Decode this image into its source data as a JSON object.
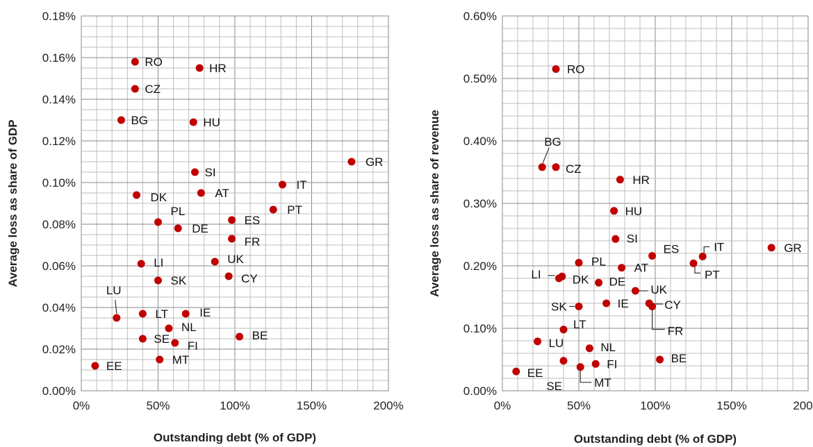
{
  "chart_data": [
    {
      "type": "scatter",
      "xlabel": "Outstanding debt (% of GDP)",
      "ylabel": "Average loss as share of GDP",
      "xlim": [
        0,
        200
      ],
      "ylim": [
        0,
        0.18
      ],
      "x_ticks": [
        "0%",
        "50%",
        "100%",
        "150%",
        "200%"
      ],
      "y_ticks": [
        "0.00%",
        "0.02%",
        "0.04%",
        "0.06%",
        "0.08%",
        "0.10%",
        "0.12%",
        "0.14%",
        "0.16%",
        "0.18%"
      ],
      "grid": true,
      "point_color": "#c00000",
      "points": [
        {
          "label": "RO",
          "x": 35,
          "y": 0.158
        },
        {
          "label": "HR",
          "x": 77,
          "y": 0.155
        },
        {
          "label": "CZ",
          "x": 35,
          "y": 0.145
        },
        {
          "label": "BG",
          "x": 26,
          "y": 0.13
        },
        {
          "label": "HU",
          "x": 73,
          "y": 0.129
        },
        {
          "label": "GR",
          "x": 176,
          "y": 0.11
        },
        {
          "label": "SI",
          "x": 74,
          "y": 0.105
        },
        {
          "label": "IT",
          "x": 131,
          "y": 0.099
        },
        {
          "label": "AT",
          "x": 78,
          "y": 0.095
        },
        {
          "label": "DK",
          "x": 36,
          "y": 0.094
        },
        {
          "label": "PT",
          "x": 125,
          "y": 0.087
        },
        {
          "label": "PL",
          "x": 50,
          "y": 0.081
        },
        {
          "label": "ES",
          "x": 98,
          "y": 0.082
        },
        {
          "label": "DE",
          "x": 63,
          "y": 0.078
        },
        {
          "label": "FR",
          "x": 98,
          "y": 0.073
        },
        {
          "label": "UK",
          "x": 87,
          "y": 0.062
        },
        {
          "label": "LI",
          "x": 39,
          "y": 0.061
        },
        {
          "label": "CY",
          "x": 96,
          "y": 0.055
        },
        {
          "label": "SK",
          "x": 50,
          "y": 0.053
        },
        {
          "label": "LU",
          "x": 23,
          "y": 0.035
        },
        {
          "label": "LT",
          "x": 40,
          "y": 0.037
        },
        {
          "label": "IE",
          "x": 68,
          "y": 0.037
        },
        {
          "label": "NL",
          "x": 57,
          "y": 0.03
        },
        {
          "label": "BE",
          "x": 103,
          "y": 0.026
        },
        {
          "label": "SE",
          "x": 40,
          "y": 0.025
        },
        {
          "label": "FI",
          "x": 61,
          "y": 0.023
        },
        {
          "label": "MT",
          "x": 51,
          "y": 0.015
        },
        {
          "label": "EE",
          "x": 9,
          "y": 0.012
        }
      ]
    },
    {
      "type": "scatter",
      "xlabel": "Outstanding debt (% of GDP)",
      "ylabel": "Average loss as share of revenue",
      "xlim": [
        0,
        200
      ],
      "ylim": [
        0,
        0.6
      ],
      "x_ticks": [
        "0%",
        "50%",
        "100%",
        "150%",
        "200%"
      ],
      "y_ticks": [
        "0.00%",
        "0.10%",
        "0.20%",
        "0.30%",
        "0.40%",
        "0.50%",
        "0.60%"
      ],
      "grid": true,
      "point_color": "#c00000",
      "points": [
        {
          "label": "RO",
          "x": 35,
          "y": 0.515
        },
        {
          "label": "BG",
          "x": 26,
          "y": 0.358
        },
        {
          "label": "CZ",
          "x": 35,
          "y": 0.358
        },
        {
          "label": "HR",
          "x": 77,
          "y": 0.338
        },
        {
          "label": "HU",
          "x": 73,
          "y": 0.288
        },
        {
          "label": "SI",
          "x": 74,
          "y": 0.243
        },
        {
          "label": "GR",
          "x": 176,
          "y": 0.229
        },
        {
          "label": "ES",
          "x": 98,
          "y": 0.216
        },
        {
          "label": "IT",
          "x": 131,
          "y": 0.215
        },
        {
          "label": "PT",
          "x": 125,
          "y": 0.204
        },
        {
          "label": "PL",
          "x": 50,
          "y": 0.205
        },
        {
          "label": "AT",
          "x": 78,
          "y": 0.197
        },
        {
          "label": "LI",
          "x": 37,
          "y": 0.18
        },
        {
          "label": "DK",
          "x": 39,
          "y": 0.183
        },
        {
          "label": "DE",
          "x": 63,
          "y": 0.173
        },
        {
          "label": "UK",
          "x": 87,
          "y": 0.16
        },
        {
          "label": "CY",
          "x": 96,
          "y": 0.14
        },
        {
          "label": "IE",
          "x": 68,
          "y": 0.14
        },
        {
          "label": "SK",
          "x": 50,
          "y": 0.135
        },
        {
          "label": "FR",
          "x": 98,
          "y": 0.135
        },
        {
          "label": "LT",
          "x": 40,
          "y": 0.098
        },
        {
          "label": "LU",
          "x": 23,
          "y": 0.079
        },
        {
          "label": "NL",
          "x": 57,
          "y": 0.068
        },
        {
          "label": "BE",
          "x": 103,
          "y": 0.05
        },
        {
          "label": "SE",
          "x": 40,
          "y": 0.048
        },
        {
          "label": "FI",
          "x": 61,
          "y": 0.043
        },
        {
          "label": "MT",
          "x": 51,
          "y": 0.038
        },
        {
          "label": "EE",
          "x": 9,
          "y": 0.031
        }
      ]
    }
  ]
}
